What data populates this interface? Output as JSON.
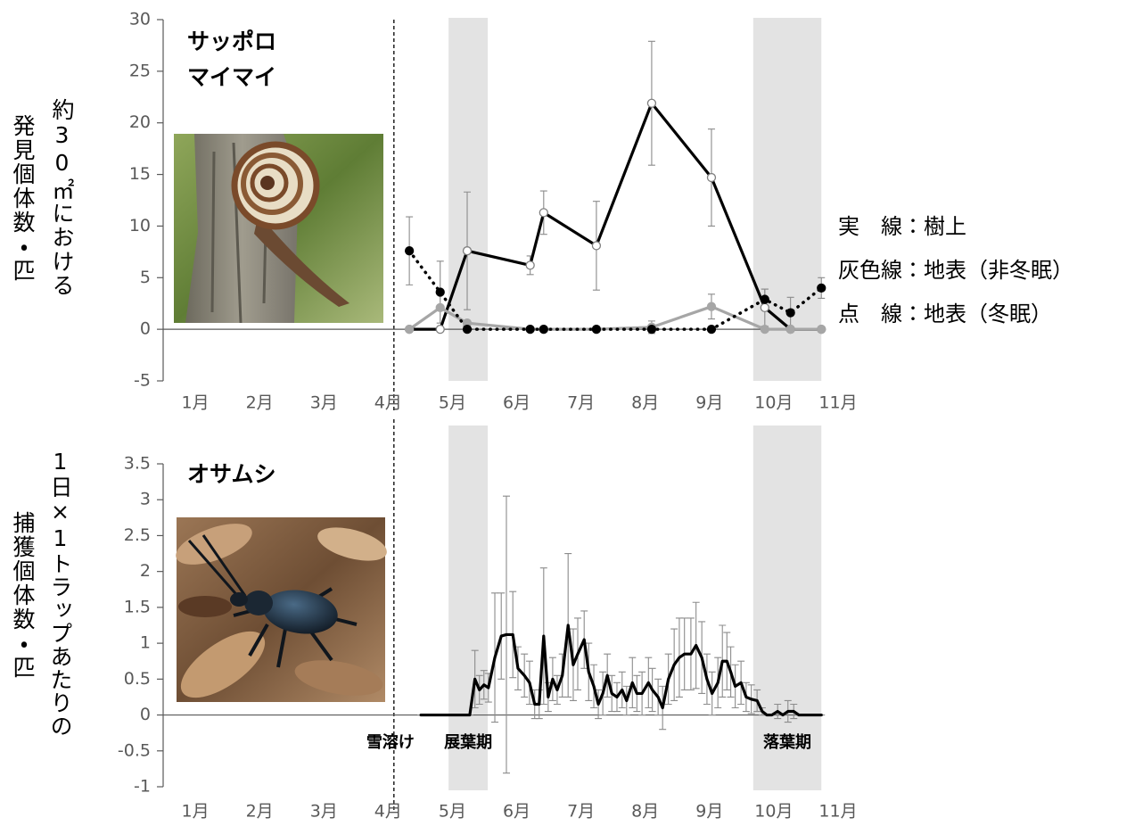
{
  "chart_data": [
    {
      "type": "line",
      "title": [
        "サッポロ",
        "マイマイ"
      ],
      "ylabel": [
        "約30㎡における",
        "発見個体数・匹"
      ],
      "xlim": [
        0.5,
        11
      ],
      "xticks": [
        {
          "value": 1,
          "label": "1月"
        },
        {
          "value": 2,
          "label": "2月"
        },
        {
          "value": 3,
          "label": "3月"
        },
        {
          "value": 4,
          "label": "4月"
        },
        {
          "value": 5,
          "label": "5月"
        },
        {
          "value": 6,
          "label": "6月"
        },
        {
          "value": 7,
          "label": "7月"
        },
        {
          "value": 8,
          "label": "8月"
        },
        {
          "value": 9,
          "label": "9月"
        },
        {
          "value": 10,
          "label": "10月"
        },
        {
          "value": 11,
          "label": "11月"
        }
      ],
      "ylim": [
        -5,
        30
      ],
      "yticks": [
        -5,
        0,
        5,
        10,
        15,
        20,
        25,
        30
      ],
      "x": [
        4.33,
        4.81,
        5.23,
        6.21,
        6.42,
        7.24,
        8.1,
        9.03,
        9.86,
        10.26,
        10.74
      ],
      "series": [
        {
          "name": "実　線：樹上",
          "color": "#000000",
          "line_style": "solid",
          "marker": "open",
          "values": [
            0,
            0,
            7.6,
            6.2,
            11.3,
            8.1,
            21.9,
            14.7,
            2.1,
            0,
            0
          ],
          "errors": [
            0,
            0,
            5.7,
            0.9,
            2.1,
            4.3,
            6,
            4.7,
            1.8,
            0,
            0
          ]
        },
        {
          "name": "灰色線：地表（非冬眠）",
          "color": "#a6a6a6",
          "line_style": "solid",
          "marker": "filled",
          "values": [
            0,
            2.1,
            0.6,
            0,
            0,
            0,
            0.2,
            2.2,
            0,
            0,
            0
          ],
          "errors": [
            0,
            0,
            0,
            0,
            0,
            0,
            0.6,
            1.2,
            0,
            0,
            0
          ]
        },
        {
          "name": "点　線：地表（冬眠）",
          "color": "#000000",
          "line_style": "dotted",
          "marker": "filled",
          "values": [
            7.6,
            3.6,
            0,
            0,
            0,
            0,
            0,
            0,
            2.9,
            1.6,
            4
          ],
          "errors": [
            3.3,
            3,
            0,
            0,
            0,
            0,
            0,
            0,
            1,
            1.5,
            1
          ]
        }
      ],
      "shaded_ranges": [
        {
          "from": 4.94,
          "to": 5.55
        },
        {
          "from": 9.68,
          "to": 10.74
        }
      ],
      "vline": {
        "x": 4.09
      },
      "legend": "right"
    },
    {
      "type": "line",
      "title": "オサムシ",
      "ylabel": [
        "1日×1トラップあたりの",
        "捕獲個体数・匹"
      ],
      "xlim": [
        0.5,
        11
      ],
      "xticks": [
        {
          "value": 1,
          "label": "1月"
        },
        {
          "value": 2,
          "label": "2月"
        },
        {
          "value": 3,
          "label": "3月"
        },
        {
          "value": 4,
          "label": "4月"
        },
        {
          "value": 5,
          "label": "5月"
        },
        {
          "value": 6,
          "label": "6月"
        },
        {
          "value": 7,
          "label": "7月"
        },
        {
          "value": 8,
          "label": "8月"
        },
        {
          "value": 9,
          "label": "9月"
        },
        {
          "value": 10,
          "label": "10月"
        },
        {
          "value": 11,
          "label": "11月"
        }
      ],
      "ylim": [
        -1,
        3.5
      ],
      "yticks": [
        -1,
        -0.5,
        0,
        0.5,
        1,
        1.5,
        2,
        2.5,
        3,
        3.5
      ],
      "x": [
        4.51,
        4.62,
        4.76,
        4.9,
        5.04,
        5.17,
        5.27,
        5.35,
        5.42,
        5.49,
        5.56,
        5.66,
        5.76,
        5.84,
        5.94,
        6.02,
        6.12,
        6.2,
        6.28,
        6.35,
        6.42,
        6.49,
        6.56,
        6.63,
        6.71,
        6.8,
        6.88,
        6.95,
        7.05,
        7.12,
        7.2,
        7.27,
        7.34,
        7.41,
        7.48,
        7.56,
        7.64,
        7.71,
        7.8,
        7.87,
        7.95,
        8.05,
        8.11,
        8.2,
        8.27,
        8.36,
        8.45,
        8.53,
        8.61,
        8.71,
        8.79,
        8.88,
        8.96,
        9.04,
        9.13,
        9.2,
        9.27,
        9.33,
        9.4,
        9.49,
        9.57,
        9.65,
        9.74,
        9.82,
        9.89,
        9.97,
        10.06,
        10.14,
        10.22,
        10.31,
        10.39,
        10.47,
        10.56,
        10.64,
        10.74
      ],
      "series": [
        {
          "color": "#000000",
          "line_style": "solid",
          "marker": "none",
          "values": [
            0,
            0,
            0,
            0,
            0,
            0,
            0,
            0.5,
            0.35,
            0.42,
            0.38,
            0.8,
            1.1,
            1.12,
            1.12,
            0.65,
            0.55,
            0.45,
            0.15,
            0.15,
            1.1,
            0.25,
            0.5,
            0.35,
            0.55,
            1.25,
            0.7,
            0.85,
            1.05,
            0.6,
            0.4,
            0.15,
            0.3,
            0.55,
            0.3,
            0.25,
            0.35,
            0.2,
            0.45,
            0.3,
            0.3,
            0.45,
            0.35,
            0.25,
            0.1,
            0.5,
            0.7,
            0.8,
            0.85,
            0.85,
            0.97,
            0.8,
            0.5,
            0.3,
            0.45,
            0.75,
            0.75,
            0.6,
            0.4,
            0.45,
            0.25,
            0.22,
            0.2,
            0.05,
            0,
            0,
            0.05,
            0,
            0.05,
            0.05,
            0,
            0,
            0,
            0,
            0
          ],
          "errors": [
            0,
            0,
            0,
            0,
            0,
            0,
            0,
            0.4,
            0.2,
            0.2,
            0.2,
            0.9,
            0.6,
            1.93,
            0.6,
            0.3,
            0.3,
            0.3,
            0.2,
            0.2,
            0.95,
            0.2,
            0.3,
            0.2,
            0.3,
            1.0,
            0.5,
            0.5,
            0.4,
            0.4,
            0.3,
            0.2,
            0.3,
            0.3,
            0.25,
            0.2,
            0.25,
            0.2,
            0.35,
            0.25,
            0.3,
            0.35,
            0.3,
            0.25,
            0.3,
            0.35,
            0.5,
            0.55,
            0.5,
            0.5,
            0.6,
            0.5,
            0.35,
            0.3,
            0.35,
            0.5,
            0.4,
            0.35,
            0.3,
            0.3,
            0.2,
            0.2,
            0.15,
            0.05,
            0,
            0,
            0.1,
            0,
            0.15,
            0.1,
            0,
            0,
            0,
            0,
            0
          ]
        }
      ],
      "shaded_ranges": [
        {
          "from": 4.94,
          "to": 5.55,
          "label": "展葉期"
        },
        {
          "from": 9.68,
          "to": 10.74,
          "label": "落葉期"
        }
      ],
      "vline": {
        "x": 4.09,
        "label": "雪溶け"
      }
    }
  ]
}
